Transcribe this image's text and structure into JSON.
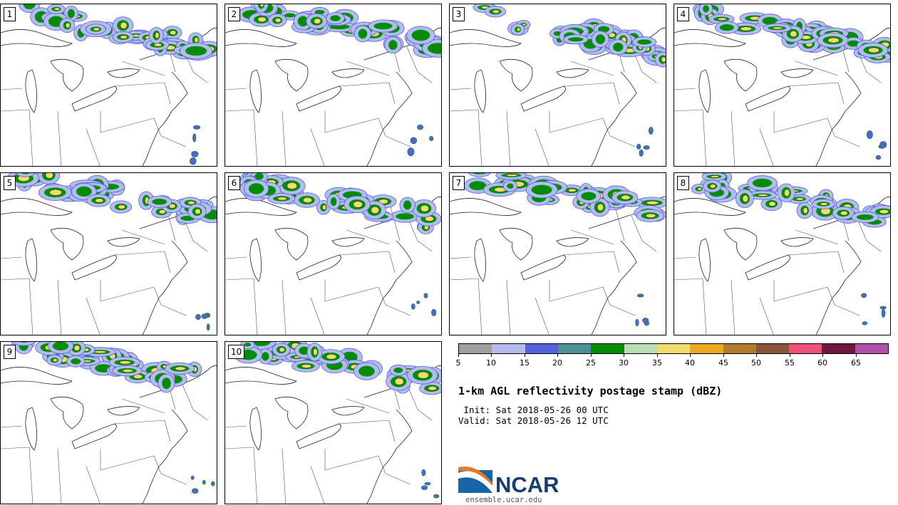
{
  "panels": [
    {
      "label": "1",
      "seed": 11
    },
    {
      "label": "2",
      "seed": 23
    },
    {
      "label": "3",
      "seed": 37
    },
    {
      "label": "4",
      "seed": 41
    },
    {
      "label": "5",
      "seed": 53
    },
    {
      "label": "6",
      "seed": 67
    },
    {
      "label": "7",
      "seed": 71
    },
    {
      "label": "8",
      "seed": 83
    },
    {
      "label": "9",
      "seed": 97
    },
    {
      "label": "10",
      "seed": 101
    }
  ],
  "colorbar": {
    "ticks": [
      "5",
      "10",
      "15",
      "20",
      "25",
      "30",
      "35",
      "40",
      "45",
      "50",
      "55",
      "60",
      "65"
    ],
    "colors": [
      "#a0a0a0",
      "#b4bbee",
      "#5660d8",
      "#4d9196",
      "#068b06",
      "#bcdcb6",
      "#f0dc6c",
      "#eaa920",
      "#b27b2e",
      "#8b553b",
      "#ed5178",
      "#6d1a3c",
      "#b150a8"
    ]
  },
  "title": "1-km AGL reflectivity postage stamp (dBZ)",
  "init": " Init: Sat 2018-05-26 00 UTC",
  "valid": "Valid: Sat 2018-05-26 12 UTC",
  "logo": {
    "text": "NCAR",
    "url": "ensemble.ucar.edu",
    "blue": "#1565a8",
    "orange": "#e07a2c"
  }
}
